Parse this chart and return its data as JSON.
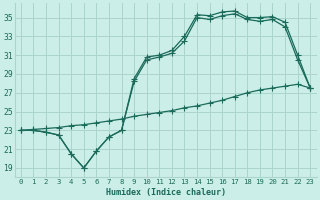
{
  "xlabel": "Humidex (Indice chaleur)",
  "bg_color": "#cceee8",
  "grid_color": "#aad4cc",
  "line_color": "#1a6b5a",
  "xlim": [
    -0.5,
    23.5
  ],
  "ylim": [
    18.0,
    36.5
  ],
  "yticks": [
    19,
    21,
    23,
    25,
    27,
    29,
    31,
    33,
    35
  ],
  "xticks": [
    0,
    1,
    2,
    3,
    4,
    5,
    6,
    7,
    8,
    9,
    10,
    11,
    12,
    13,
    14,
    15,
    16,
    17,
    18,
    19,
    20,
    21,
    22,
    23
  ],
  "curve1_x": [
    0,
    1,
    2,
    3,
    4,
    5,
    6,
    7,
    8,
    9,
    10,
    11,
    12,
    13,
    14,
    15,
    16,
    17,
    18,
    19,
    20,
    21,
    22,
    23
  ],
  "curve1_y": [
    23.0,
    23.0,
    22.8,
    22.5,
    20.5,
    19.0,
    20.8,
    22.3,
    23.0,
    28.5,
    30.8,
    31.0,
    31.5,
    33.0,
    35.3,
    35.2,
    35.6,
    35.7,
    35.0,
    35.0,
    35.1,
    34.5,
    31.0,
    27.5
  ],
  "curve2_x": [
    0,
    1,
    2,
    3,
    4,
    5,
    6,
    7,
    8,
    9,
    10,
    11,
    12,
    13,
    14,
    15,
    16,
    17,
    18,
    19,
    20,
    21,
    22,
    23
  ],
  "curve2_y": [
    23.0,
    23.0,
    22.8,
    22.5,
    20.5,
    19.0,
    20.8,
    22.3,
    23.0,
    28.2,
    30.5,
    30.8,
    31.2,
    32.5,
    35.0,
    34.8,
    35.2,
    35.4,
    34.8,
    34.6,
    34.8,
    34.0,
    30.5,
    27.5
  ],
  "curve3_x": [
    0,
    1,
    2,
    3,
    4,
    5,
    6,
    7,
    8,
    9,
    10,
    11,
    12,
    13,
    14,
    15,
    16,
    17,
    18,
    19,
    20,
    21,
    22,
    23
  ],
  "curve3_y": [
    23.0,
    23.1,
    23.2,
    23.3,
    23.5,
    23.6,
    23.8,
    24.0,
    24.2,
    24.5,
    24.7,
    24.9,
    25.1,
    25.4,
    25.6,
    25.9,
    26.2,
    26.6,
    27.0,
    27.3,
    27.5,
    27.7,
    27.9,
    27.5
  ]
}
